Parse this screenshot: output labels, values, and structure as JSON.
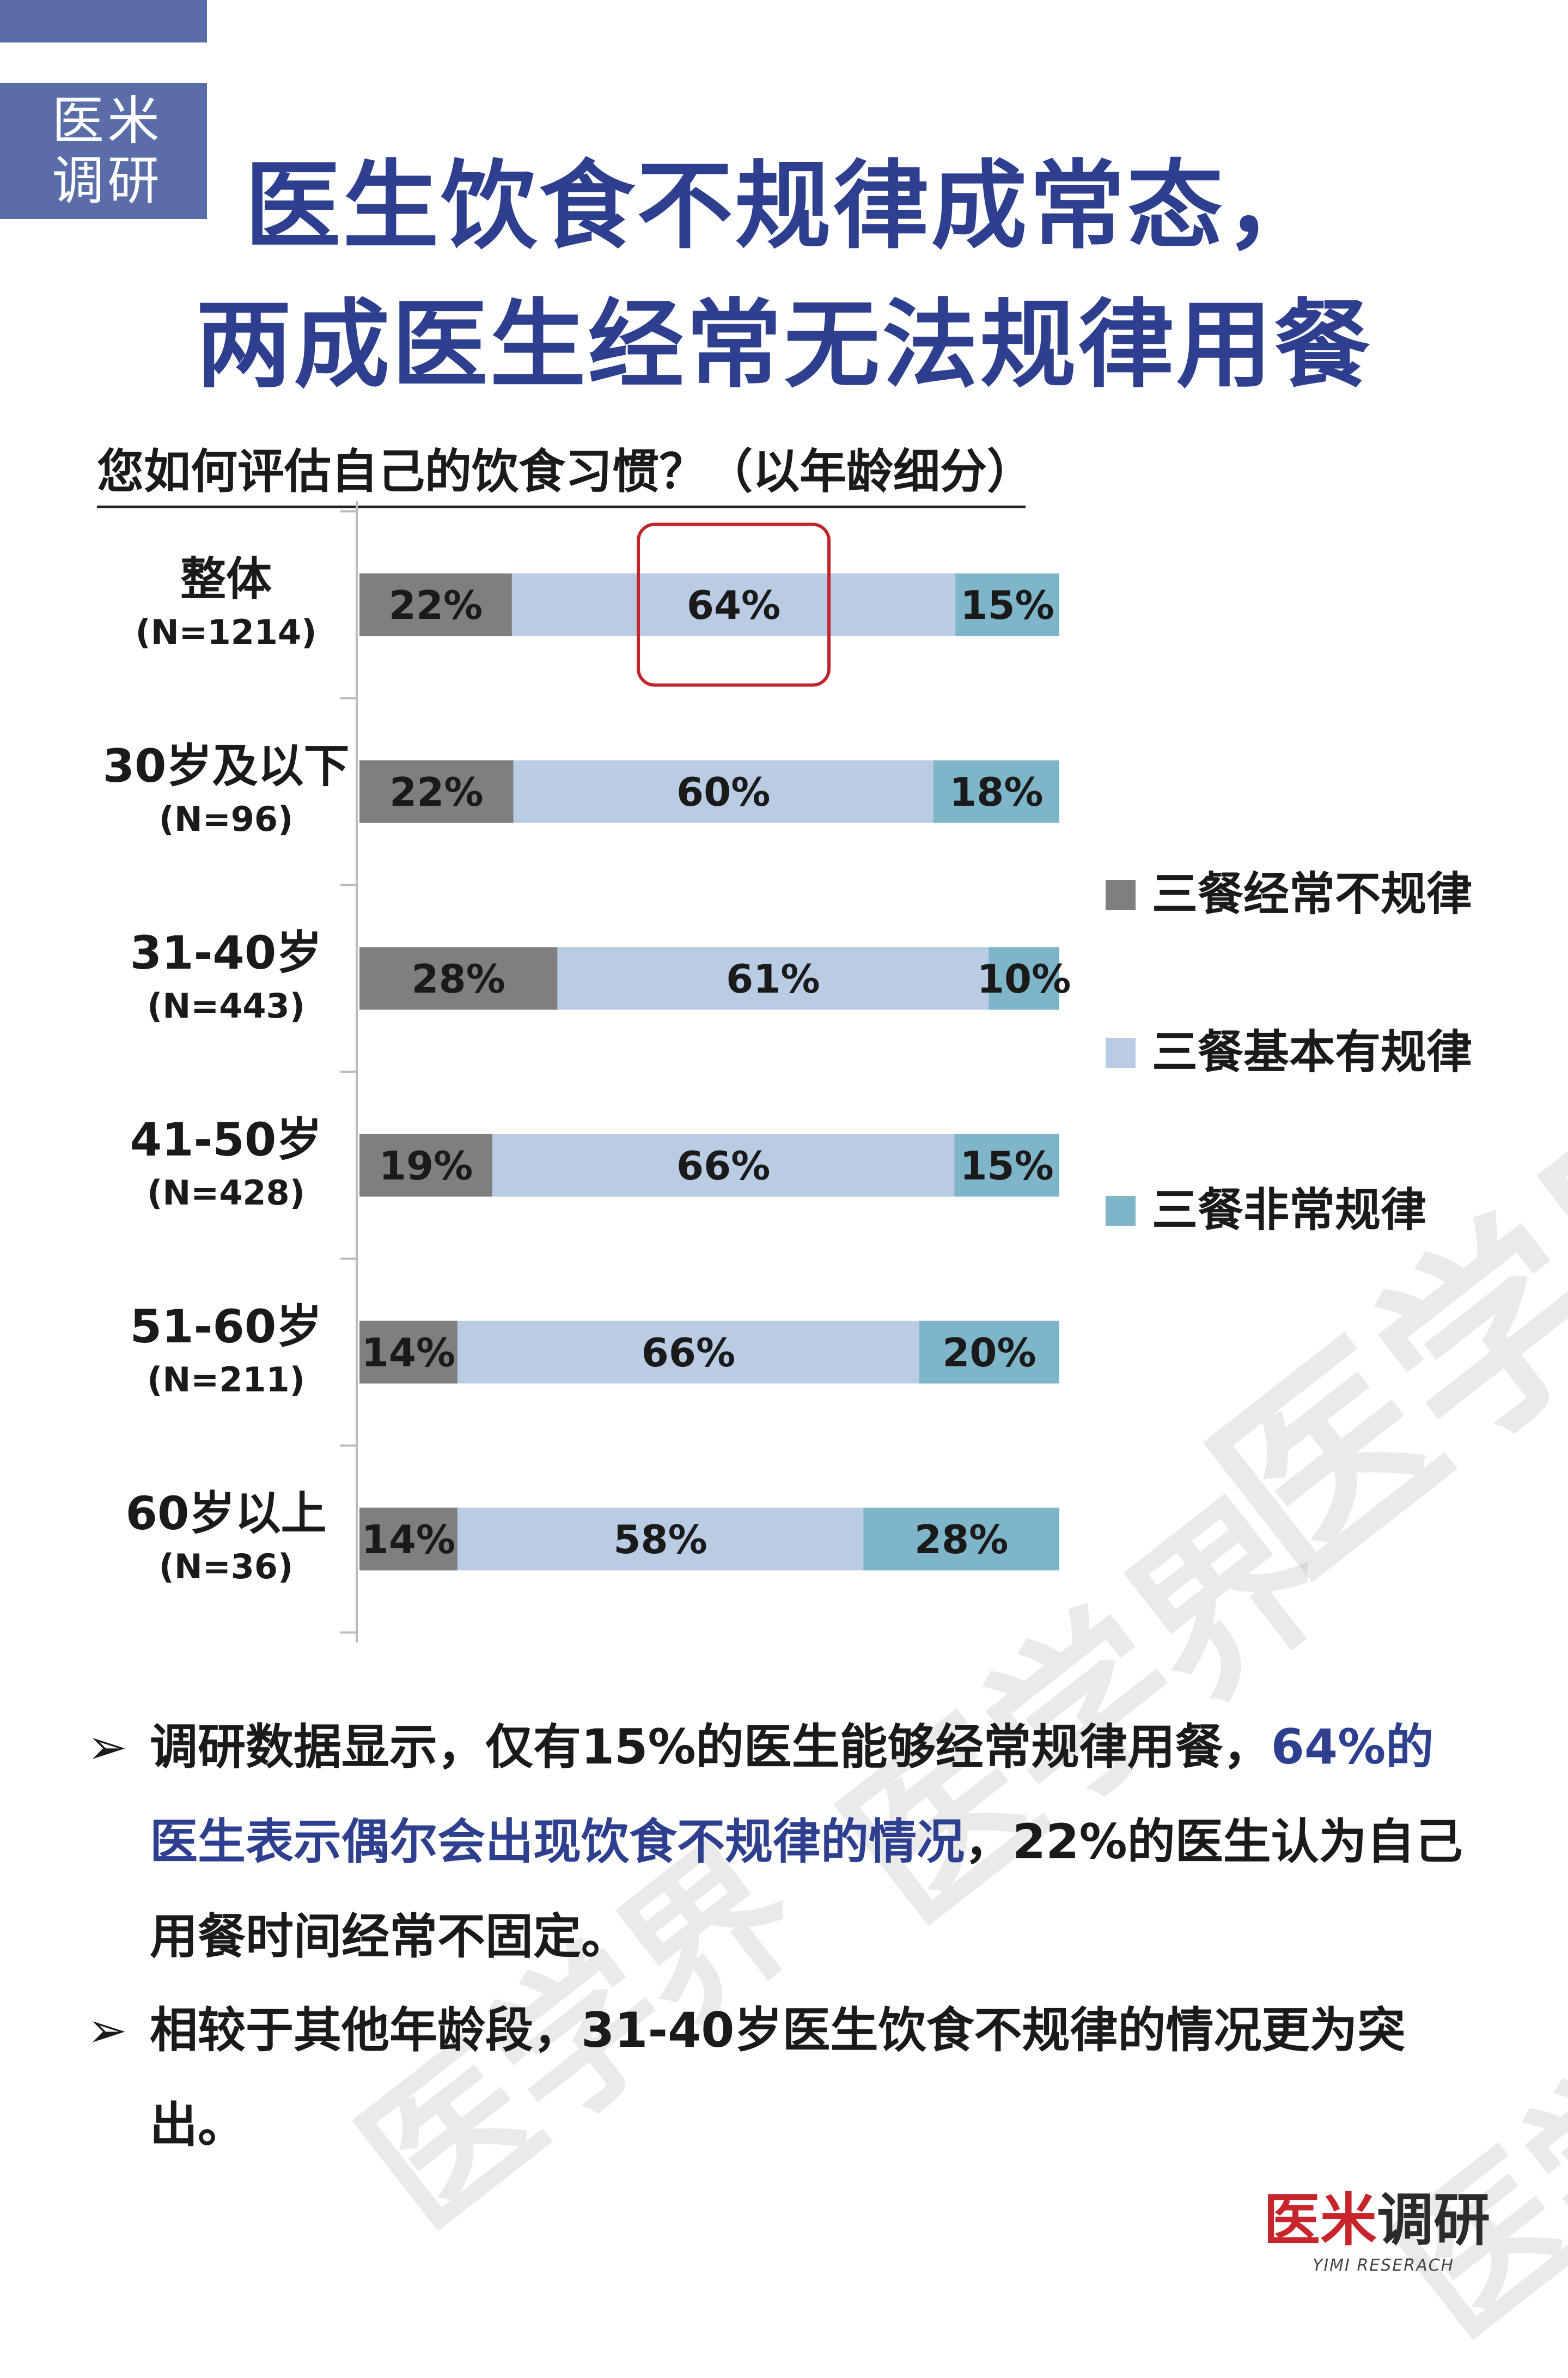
{
  "brand": {
    "line1": "医米",
    "line2": "调研"
  },
  "title": {
    "line1": "医生饮食不规律成常态，",
    "line2": "两成医生经常无法规律用餐"
  },
  "chart_data": {
    "type": "bar",
    "orientation": "horizontal",
    "stacked": true,
    "title": "您如何评估自己的饮食习惯？（以年龄细分）",
    "categories": [
      "整体",
      "30岁及以下",
      "31-40岁",
      "41-50岁",
      "51-60岁",
      "60岁以上"
    ],
    "category_sublabels": [
      "(N=1214)",
      "(N=96)",
      "(N=443)",
      "(N=428)",
      "(N=211)",
      "(N=36)"
    ],
    "series": [
      {
        "name": "三餐经常不规律",
        "color": "#7f7f7f",
        "values": [
          22,
          22,
          28,
          19,
          14,
          14
        ]
      },
      {
        "name": "三餐基本有规律",
        "color": "#b9cce4",
        "values": [
          64,
          60,
          61,
          66,
          66,
          58
        ]
      },
      {
        "name": "三餐非常规律",
        "color": "#7fb5c8",
        "values": [
          15,
          18,
          10,
          15,
          20,
          28
        ]
      }
    ],
    "value_suffix": "%",
    "legend_position": "right",
    "highlight": {
      "category": "整体",
      "series": "三餐基本有规律"
    }
  },
  "bullets": [
    {
      "pre": "调研数据显示，仅有15%的医生能够经常规律用餐，",
      "highlight": "64%的医生表示偶尔会出现饮食不规律的情况",
      "post": "，22%的医生认为自己用餐时间经常不固定。"
    },
    {
      "pre": "相较于其他年龄段，31-40岁医生饮食不规律的情况更为突出。",
      "highlight": "",
      "post": ""
    }
  ],
  "watermark": "医学界",
  "footer": {
    "logo_red": "医米",
    "logo_dark": "调研",
    "logo_en": "YIMI RESERACH"
  }
}
